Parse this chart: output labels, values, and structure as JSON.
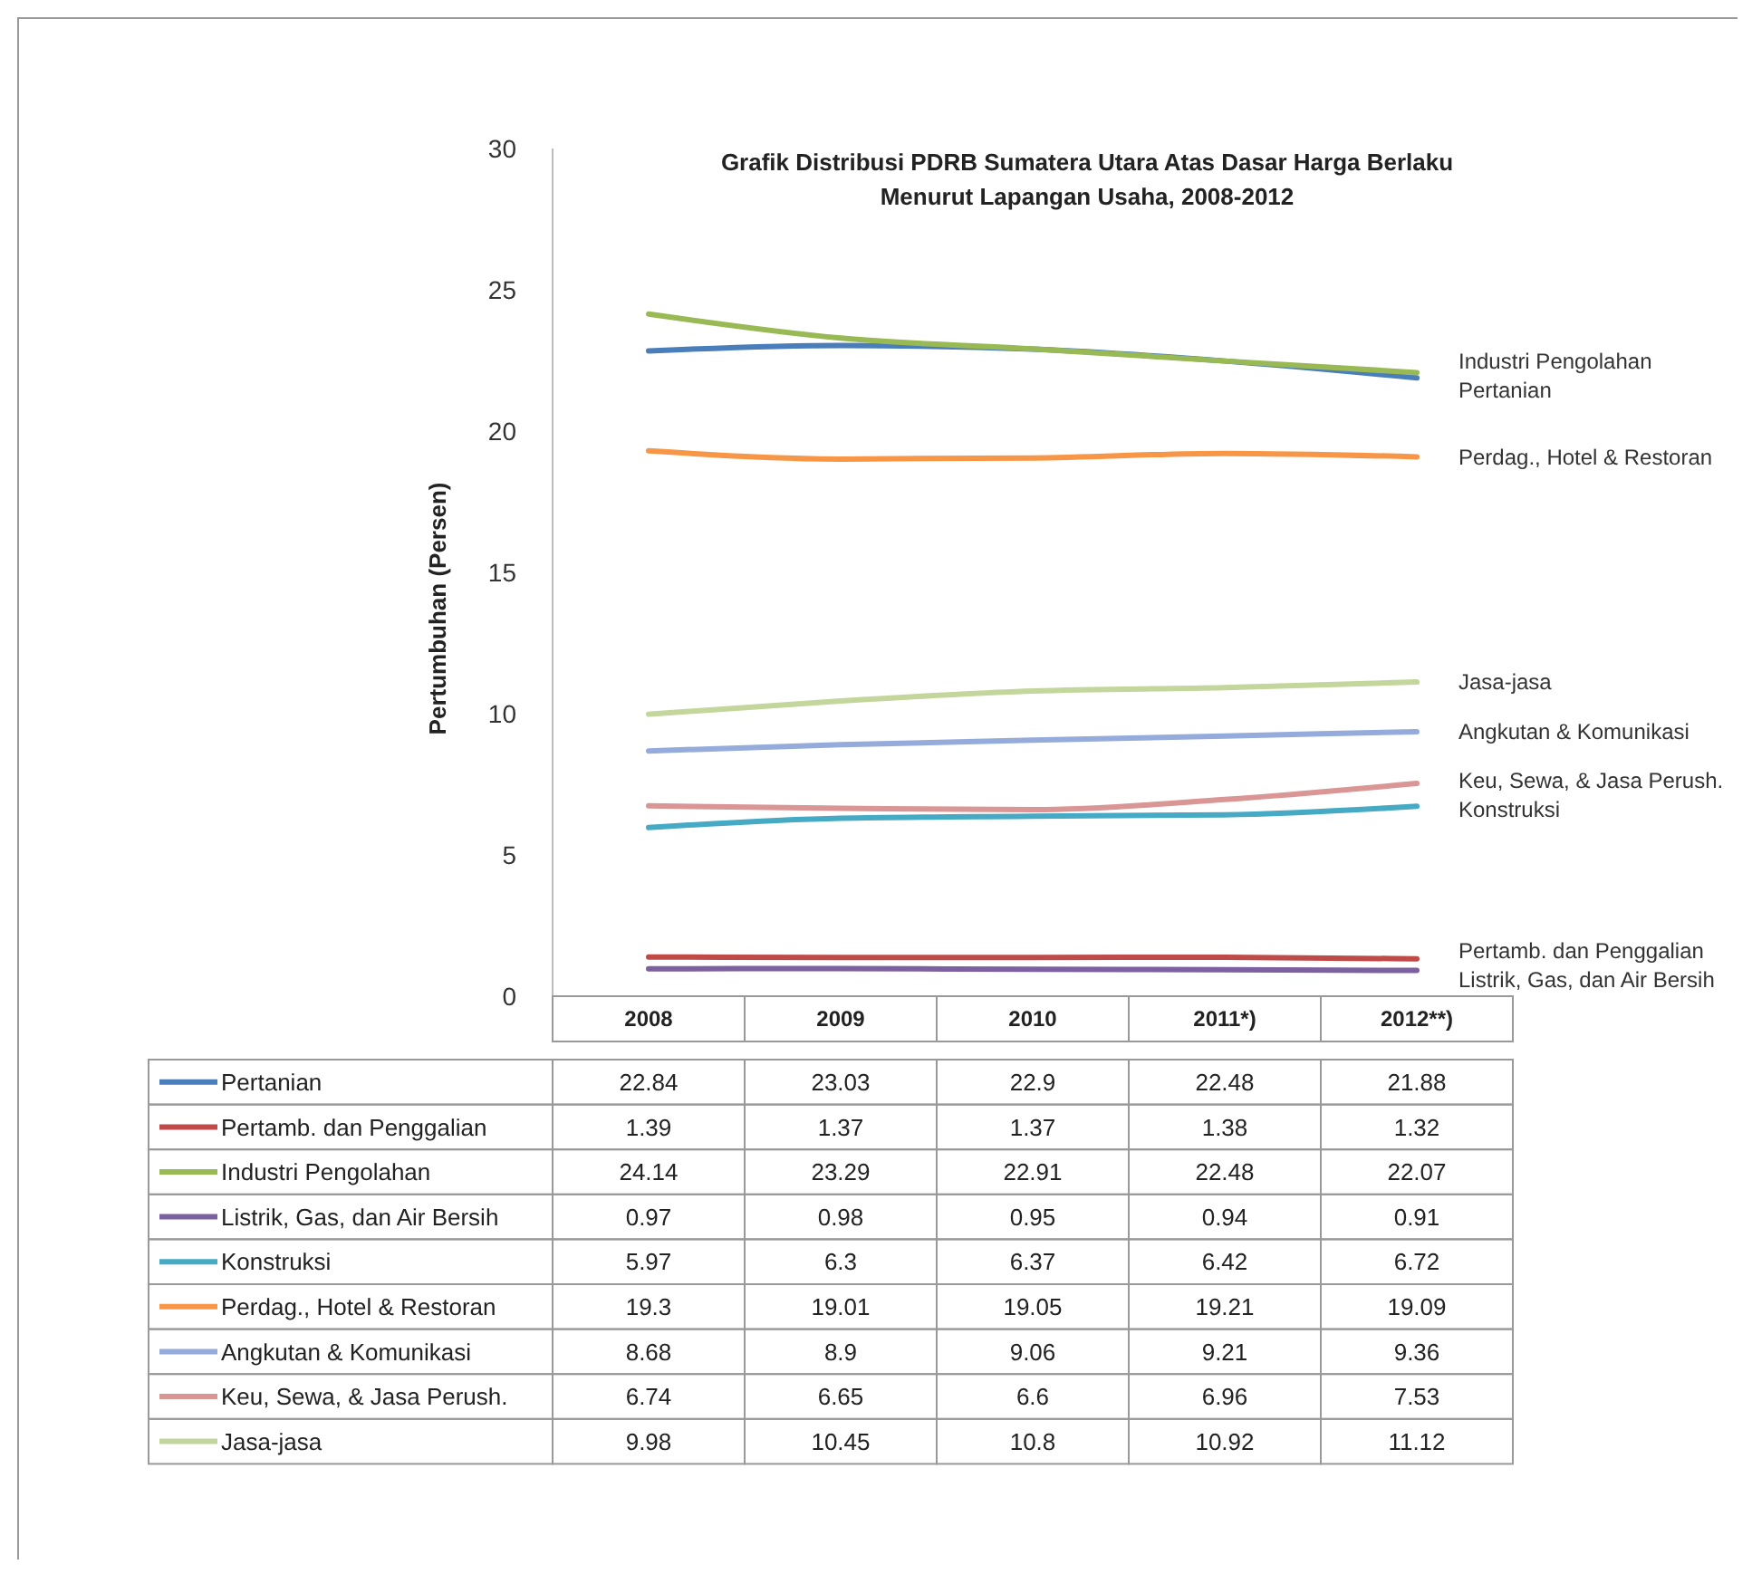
{
  "chart_data": {
    "type": "line",
    "title": "Grafik Distribusi PDRB Sumatera Utara Atas Dasar Harga Berlaku Menurut Lapangan Usaha, 2008-2012",
    "ylabel": "Pertumbuhan (Persen)",
    "categories": [
      "2008",
      "2009",
      "2010",
      "2011*)",
      "2012**)"
    ],
    "ylim": [
      0,
      30
    ],
    "yticks": [
      0,
      5,
      10,
      15,
      20,
      25,
      30
    ],
    "data_labels": true,
    "legend": "bottom",
    "marker": "none",
    "series": [
      {
        "name": "Pertanian",
        "color": "#4a7ebb",
        "values": [
          22.84,
          23.03,
          22.9,
          22.48,
          21.88
        ]
      },
      {
        "name": "Pertamb. dan Penggalian",
        "color": "#be4b48",
        "values": [
          1.39,
          1.37,
          1.37,
          1.38,
          1.32
        ]
      },
      {
        "name": "Industri Pengolahan",
        "color": "#98b954",
        "values": [
          24.14,
          23.29,
          22.91,
          22.48,
          22.07
        ]
      },
      {
        "name": "Listrik, Gas, dan Air Bersih",
        "color": "#7d60a0",
        "values": [
          0.97,
          0.98,
          0.95,
          0.94,
          0.91
        ]
      },
      {
        "name": "Konstruksi",
        "color": "#46aac5",
        "values": [
          5.97,
          6.3,
          6.37,
          6.42,
          6.72
        ]
      },
      {
        "name": "Perdag., Hotel & Restoran",
        "color": "#f79646",
        "values": [
          19.3,
          19.01,
          19.05,
          19.21,
          19.09
        ]
      },
      {
        "name": "Angkutan & Komunikasi",
        "color": "#95abdc",
        "values": [
          8.68,
          8.9,
          9.06,
          9.21,
          9.36
        ]
      },
      {
        "name": "Keu, Sewa, & Jasa Perush.",
        "color": "#d99694",
        "values": [
          6.74,
          6.65,
          6.6,
          6.96,
          7.53
        ]
      },
      {
        "name": "Jasa-jasa",
        "color": "#c3d69b",
        "values": [
          9.98,
          10.45,
          10.8,
          10.92,
          11.12
        ]
      }
    ]
  }
}
